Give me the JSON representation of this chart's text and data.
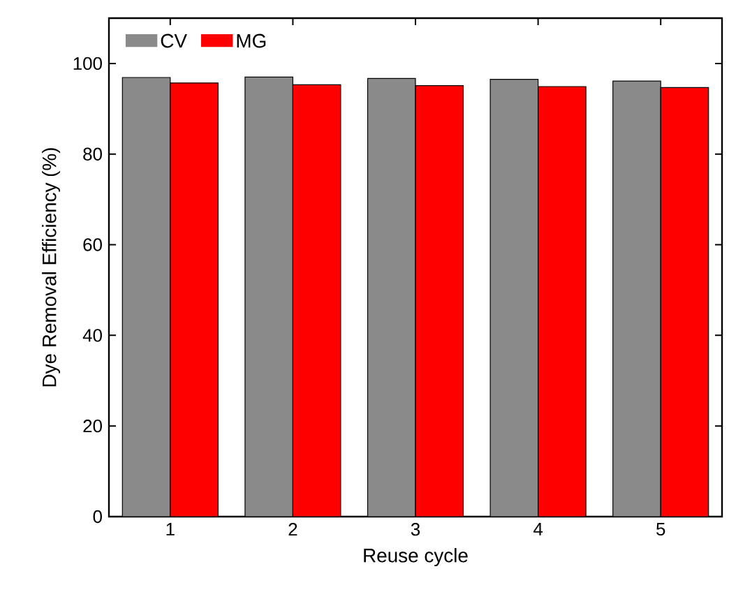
{
  "chart_data": {
    "type": "bar",
    "xlabel": "Reuse cycle",
    "ylabel": "Dye Removal Efficiency (%)",
    "categories": [
      "1",
      "2",
      "3",
      "4",
      "5"
    ],
    "series": [
      {
        "name": "CV",
        "color": "#8a8a8a",
        "values": [
          96.9,
          97.0,
          96.7,
          96.5,
          96.1
        ]
      },
      {
        "name": "MG",
        "color": "#ff0000",
        "values": [
          95.7,
          95.3,
          95.1,
          94.9,
          94.7
        ]
      }
    ],
    "ylim": [
      0,
      110
    ],
    "yticks": [
      0,
      20,
      40,
      60,
      80,
      100
    ],
    "legend": "top left",
    "grid": false
  }
}
